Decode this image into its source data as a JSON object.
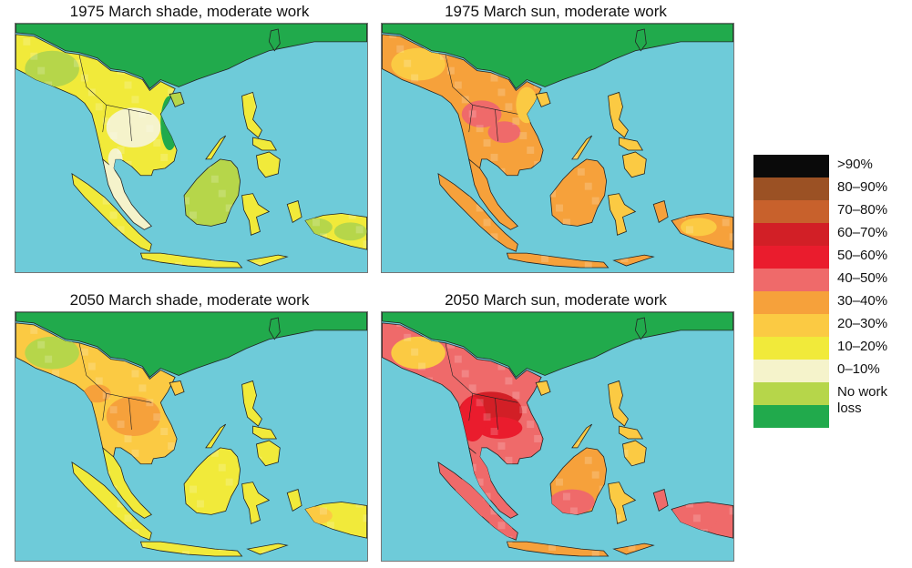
{
  "panels": [
    {
      "title": "1975 March shade, moderate work",
      "scenario": "shade-1975"
    },
    {
      "title": "1975 March sun, moderate work",
      "scenario": "sun-1975"
    },
    {
      "title": "2050 March shade, moderate work",
      "scenario": "shade-2050"
    },
    {
      "title": "2050 March sun, moderate work",
      "scenario": "sun-2050"
    }
  ],
  "legend": [
    {
      "label": ">90%",
      "color": "#0a0a0a"
    },
    {
      "label": "80–90%",
      "color": "#9b5124"
    },
    {
      "label": "70–80%",
      "color": "#c8612c"
    },
    {
      "label": "60–70%",
      "color": "#d21f26"
    },
    {
      "label": "50–60%",
      "color": "#ea1c2d"
    },
    {
      "label": "40–50%",
      "color": "#ef6a6a"
    },
    {
      "label": "30–40%",
      "color": "#f6a13b"
    },
    {
      "label": "20–30%",
      "color": "#fbca43"
    },
    {
      "label": "10–20%",
      "color": "#f1ea3a"
    },
    {
      "label": "0–10%",
      "color": "#f5f3cb"
    },
    {
      "label": "No work\nloss",
      "color": "#b6d64a",
      "color2": "#21aa4c"
    }
  ],
  "colors": {
    "ocean": "#6ecbd9",
    "china": "#21aa4c",
    "coast": "#222222"
  }
}
